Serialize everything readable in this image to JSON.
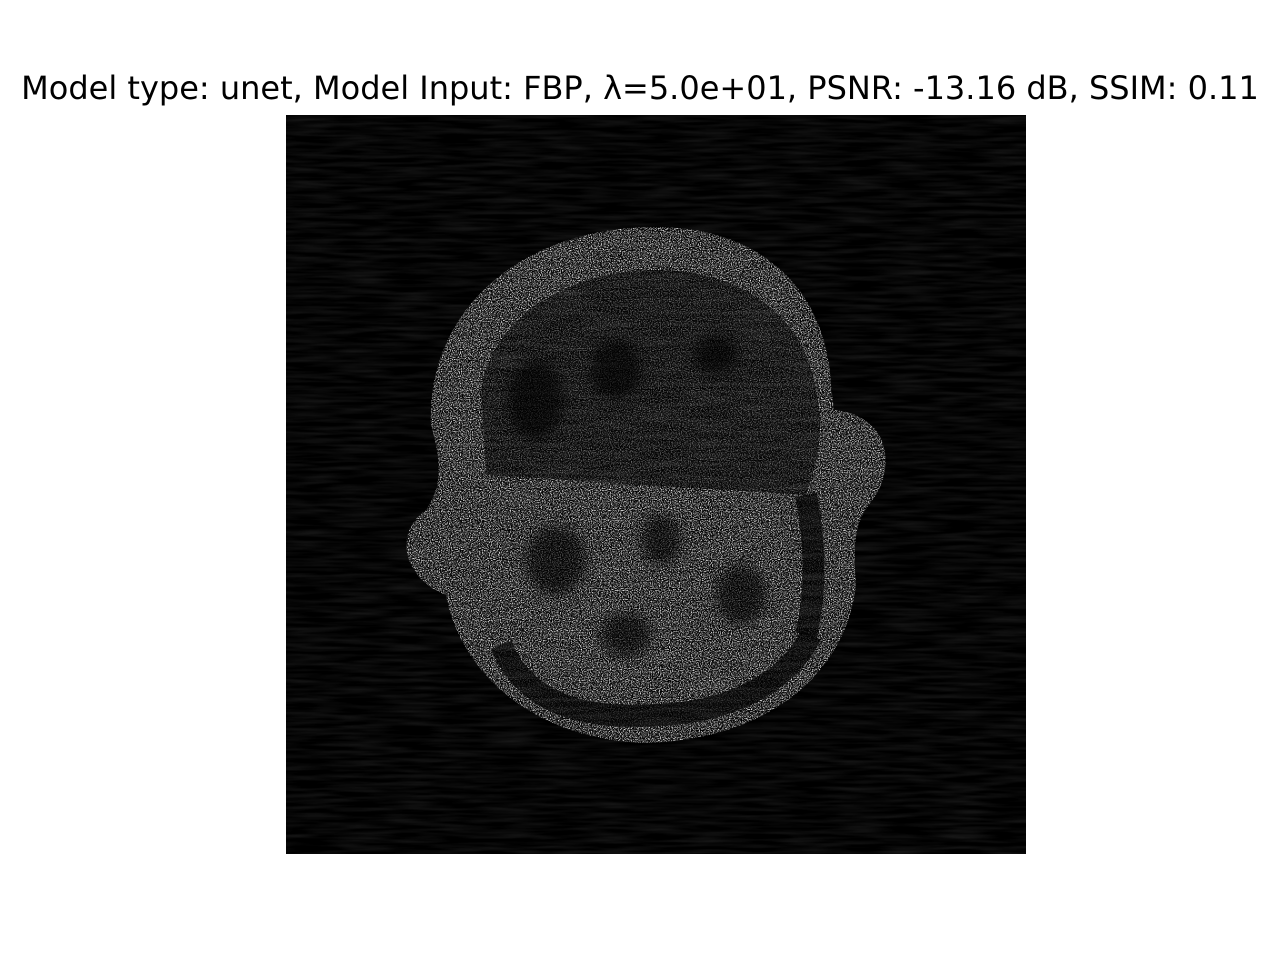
{
  "figure": {
    "title": "Model type: unet, Model Input: FBP, λ=5.0e+01, PSNR: -13.16 dB, SSIM: 0.11"
  },
  "image": {
    "description_name": "ct-reconstruction-slice",
    "colormap": "gray",
    "background_color": "#000000",
    "foreground_color": "#ffffff"
  }
}
